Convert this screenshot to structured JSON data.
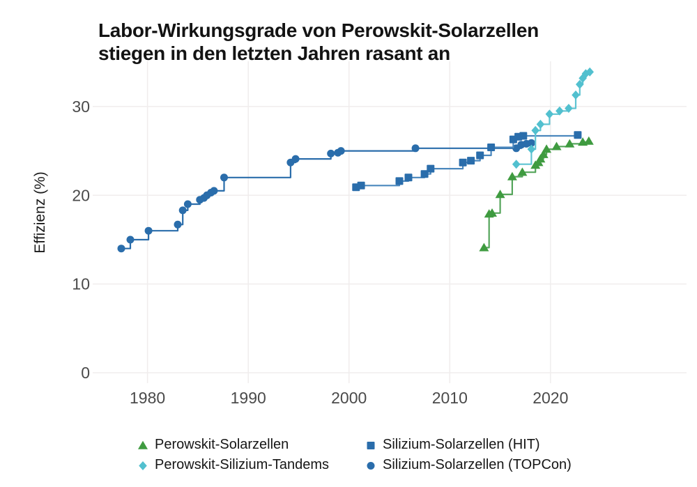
{
  "title": {
    "text": "Labor-Wirkungsgrade von Perowskit-Solarzellen\nstiegen in den letzten Jahren rasant an"
  },
  "y_axis_label": "Effizienz (%)",
  "style": {
    "gridline": "#f0eded",
    "tick_text": "#4a4a4a",
    "title_text": "#131313",
    "green": "#3f9b40",
    "cyan": "#52c0cf",
    "blue": "#2a6dab"
  },
  "chart_data": {
    "type": "line",
    "subtype": "step-after",
    "title": "Labor-Wirkungsgrade von Perowskit-Solarzellen stiegen in den letzten Jahren rasant an",
    "xlabel": "",
    "ylabel": "Effizienz (%)",
    "grid": true,
    "legend_position": "bottom",
    "x_ticks": [
      1980,
      1990,
      2000,
      2010,
      2020
    ],
    "y_ticks": [
      0,
      10,
      20,
      30
    ],
    "xlim": [
      1975.6,
      2033.5
    ],
    "ylim": [
      0,
      35.1
    ],
    "series": [
      {
        "name": "Perowskit-Solarzellen",
        "marker": "triangle",
        "color": "#3f9b40",
        "line_color": "#55a55b",
        "points": [
          [
            2013.4,
            14.1
          ],
          [
            2013.9,
            17.9
          ],
          [
            2014.2,
            18.0
          ],
          [
            2015.0,
            20.1
          ],
          [
            2016.2,
            22.1
          ],
          [
            2017.2,
            22.6
          ],
          [
            2018.5,
            23.4
          ],
          [
            2018.8,
            23.7
          ],
          [
            2019.0,
            24.1
          ],
          [
            2019.3,
            24.6
          ],
          [
            2019.6,
            25.2
          ],
          [
            2020.6,
            25.5
          ],
          [
            2021.9,
            25.8
          ],
          [
            2023.2,
            26.0
          ],
          [
            2023.8,
            26.1
          ]
        ]
      },
      {
        "name": "Perowskit-Silizium-Tandems",
        "marker": "diamond",
        "color": "#52c0cf",
        "line_color": "#5fc4d2",
        "points": [
          [
            2016.6,
            23.5
          ],
          [
            2018.1,
            25.2
          ],
          [
            2018.5,
            27.3
          ],
          [
            2019.0,
            28.0
          ],
          [
            2019.9,
            29.15
          ],
          [
            2020.9,
            29.5
          ],
          [
            2021.8,
            29.8
          ],
          [
            2022.5,
            31.3
          ],
          [
            2022.9,
            32.5
          ],
          [
            2023.2,
            33.2
          ],
          [
            2023.5,
            33.7
          ],
          [
            2023.9,
            33.9
          ]
        ]
      },
      {
        "name": "Silizium-Solarzellen (HIT)",
        "marker": "square",
        "color": "#2a6dab",
        "line_color": "#4a87bd",
        "points": [
          [
            2000.7,
            20.9
          ],
          [
            2001.2,
            21.1
          ],
          [
            2005.0,
            21.6
          ],
          [
            2005.9,
            22.0
          ],
          [
            2007.5,
            22.4
          ],
          [
            2008.1,
            23.0
          ],
          [
            2011.3,
            23.7
          ],
          [
            2012.1,
            23.9
          ],
          [
            2013.0,
            24.5
          ],
          [
            2014.1,
            25.4
          ],
          [
            2016.3,
            26.3
          ],
          [
            2016.8,
            26.6
          ],
          [
            2017.3,
            26.7
          ],
          [
            2022.7,
            26.8
          ]
        ]
      },
      {
        "name": "Silizium-Solarzellen (TOPCon)",
        "marker": "circle",
        "color": "#2a6dab",
        "line_color": "#2a6dab",
        "points": [
          [
            1977.4,
            14.0
          ],
          [
            1978.3,
            15.0
          ],
          [
            1980.1,
            16.0
          ],
          [
            1983.0,
            16.7
          ],
          [
            1983.5,
            18.3
          ],
          [
            1984.0,
            19.0
          ],
          [
            1985.2,
            19.5
          ],
          [
            1985.6,
            19.7
          ],
          [
            1985.9,
            20.0
          ],
          [
            1986.3,
            20.3
          ],
          [
            1986.6,
            20.5
          ],
          [
            1987.6,
            22.0
          ],
          [
            1994.2,
            23.7
          ],
          [
            1994.7,
            24.1
          ],
          [
            1998.2,
            24.7
          ],
          [
            1998.9,
            24.8
          ],
          [
            1999.2,
            25.0
          ],
          [
            2006.6,
            25.3
          ],
          [
            2016.6,
            25.3
          ],
          [
            2017.1,
            25.7
          ],
          [
            2017.6,
            25.8
          ],
          [
            2018.1,
            25.9
          ]
        ]
      }
    ]
  }
}
